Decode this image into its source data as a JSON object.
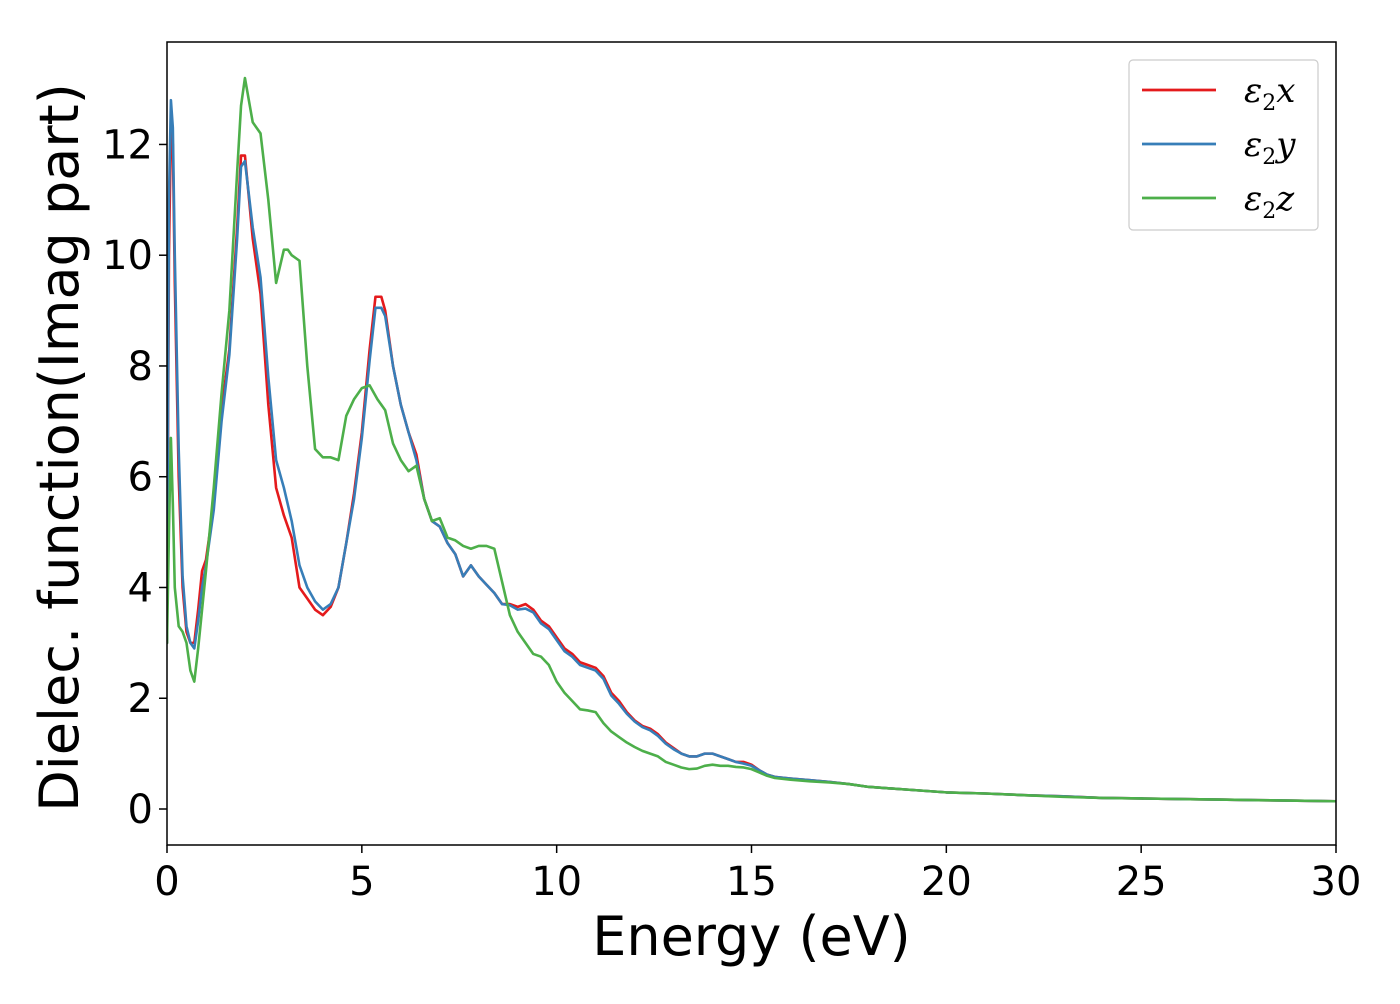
{
  "chart_data": {
    "type": "line",
    "title": "",
    "xlabel": "Energy (eV)",
    "ylabel": "Dielec. function(Imag part)",
    "xlim": [
      0,
      30
    ],
    "ylim": [
      -0.65,
      13.85
    ],
    "xticks": [
      0,
      5,
      10,
      15,
      20,
      25,
      30
    ],
    "yticks": [
      0,
      2,
      4,
      6,
      8,
      10,
      12
    ],
    "grid": false,
    "legend_position": "top-right",
    "series": [
      {
        "name": "ε₂x",
        "legend_main": "ε",
        "legend_sub": "2",
        "legend_suffix": "x",
        "color": "#e41a1c",
        "x": [
          0.0,
          0.05,
          0.1,
          0.15,
          0.2,
          0.3,
          0.4,
          0.5,
          0.6,
          0.7,
          0.8,
          0.9,
          1.0,
          1.2,
          1.4,
          1.6,
          1.8,
          1.9,
          2.0,
          2.2,
          2.4,
          2.6,
          2.8,
          3.0,
          3.2,
          3.4,
          3.6,
          3.8,
          4.0,
          4.2,
          4.4,
          4.6,
          4.8,
          5.0,
          5.2,
          5.35,
          5.5,
          5.6,
          5.8,
          6.0,
          6.2,
          6.4,
          6.6,
          6.8,
          7.0,
          7.2,
          7.4,
          7.6,
          7.8,
          8.0,
          8.2,
          8.4,
          8.6,
          8.8,
          9.0,
          9.2,
          9.4,
          9.6,
          9.8,
          10.0,
          10.2,
          10.4,
          10.6,
          10.8,
          11.0,
          11.2,
          11.4,
          11.6,
          11.8,
          12.0,
          12.2,
          12.4,
          12.6,
          12.8,
          13.0,
          13.2,
          13.4,
          13.6,
          13.8,
          14.0,
          14.2,
          14.4,
          14.6,
          14.8,
          15.0,
          15.2,
          15.4,
          15.6,
          16.0,
          16.5,
          17.0,
          17.5,
          18.0,
          19.0,
          20.0,
          21.0,
          22.0,
          23.0,
          24.0,
          25.0,
          26.0,
          27.0,
          28.0,
          29.0,
          30.0
        ],
        "y": [
          3.0,
          10.0,
          12.3,
          12.0,
          9.5,
          6.0,
          4.0,
          3.2,
          3.0,
          3.0,
          3.6,
          4.3,
          4.5,
          5.5,
          7.2,
          8.3,
          10.5,
          11.8,
          11.8,
          10.3,
          9.3,
          7.3,
          5.8,
          5.3,
          4.9,
          4.0,
          3.8,
          3.6,
          3.5,
          3.65,
          4.0,
          4.8,
          5.7,
          6.8,
          8.3,
          9.25,
          9.25,
          9.0,
          8.0,
          7.3,
          6.8,
          6.4,
          5.6,
          5.2,
          5.1,
          4.8,
          4.6,
          4.2,
          4.4,
          4.2,
          4.05,
          3.9,
          3.7,
          3.7,
          3.65,
          3.7,
          3.6,
          3.4,
          3.3,
          3.1,
          2.9,
          2.8,
          2.65,
          2.6,
          2.55,
          2.4,
          2.1,
          1.95,
          1.75,
          1.6,
          1.5,
          1.45,
          1.35,
          1.2,
          1.1,
          1.0,
          0.95,
          0.95,
          1.0,
          1.0,
          0.95,
          0.9,
          0.85,
          0.85,
          0.8,
          0.7,
          0.62,
          0.58,
          0.55,
          0.52,
          0.49,
          0.45,
          0.4,
          0.35,
          0.3,
          0.28,
          0.25,
          0.23,
          0.2,
          0.19,
          0.18,
          0.17,
          0.16,
          0.15,
          0.14
        ]
      },
      {
        "name": "ε₂y",
        "legend_main": "ε",
        "legend_sub": "2",
        "legend_suffix": "y",
        "color": "#377eb8",
        "x": [
          0.0,
          0.05,
          0.1,
          0.15,
          0.2,
          0.3,
          0.4,
          0.5,
          0.6,
          0.7,
          0.8,
          0.9,
          1.0,
          1.2,
          1.4,
          1.6,
          1.8,
          1.9,
          2.0,
          2.2,
          2.4,
          2.6,
          2.8,
          3.0,
          3.2,
          3.4,
          3.6,
          3.8,
          4.0,
          4.2,
          4.4,
          4.6,
          4.8,
          5.0,
          5.2,
          5.35,
          5.5,
          5.6,
          5.8,
          6.0,
          6.2,
          6.4,
          6.6,
          6.8,
          7.0,
          7.2,
          7.4,
          7.6,
          7.8,
          8.0,
          8.2,
          8.4,
          8.6,
          8.8,
          9.0,
          9.2,
          9.4,
          9.6,
          9.8,
          10.0,
          10.2,
          10.4,
          10.6,
          10.8,
          11.0,
          11.2,
          11.4,
          11.6,
          11.8,
          12.0,
          12.2,
          12.4,
          12.6,
          12.8,
          13.0,
          13.2,
          13.4,
          13.6,
          13.8,
          14.0,
          14.2,
          14.4,
          14.6,
          14.8,
          15.0,
          15.2,
          15.4,
          15.6,
          16.0,
          16.5,
          17.0,
          17.5,
          18.0,
          19.0,
          20.0,
          21.0,
          22.0,
          23.0,
          24.0,
          25.0,
          26.0,
          27.0,
          28.0,
          29.0,
          30.0
        ],
        "y": [
          3.0,
          11.0,
          12.8,
          12.3,
          10.0,
          6.5,
          4.2,
          3.3,
          3.0,
          2.9,
          3.4,
          4.0,
          4.4,
          5.4,
          7.0,
          8.2,
          10.3,
          11.6,
          11.7,
          10.5,
          9.6,
          7.8,
          6.3,
          5.8,
          5.2,
          4.4,
          4.0,
          3.75,
          3.6,
          3.7,
          4.0,
          4.8,
          5.6,
          6.7,
          8.1,
          9.05,
          9.05,
          8.9,
          8.0,
          7.3,
          6.8,
          6.3,
          5.6,
          5.2,
          5.1,
          4.8,
          4.6,
          4.2,
          4.4,
          4.2,
          4.05,
          3.9,
          3.7,
          3.68,
          3.6,
          3.62,
          3.55,
          3.35,
          3.25,
          3.05,
          2.85,
          2.75,
          2.6,
          2.55,
          2.5,
          2.35,
          2.05,
          1.9,
          1.72,
          1.58,
          1.48,
          1.42,
          1.32,
          1.18,
          1.08,
          1.0,
          0.95,
          0.95,
          1.0,
          1.0,
          0.95,
          0.9,
          0.85,
          0.82,
          0.78,
          0.7,
          0.62,
          0.58,
          0.55,
          0.52,
          0.49,
          0.45,
          0.4,
          0.35,
          0.3,
          0.28,
          0.25,
          0.23,
          0.2,
          0.19,
          0.18,
          0.17,
          0.16,
          0.15,
          0.14
        ]
      },
      {
        "name": "ε₂z",
        "legend_main": "ε",
        "legend_sub": "2",
        "legend_suffix": "z",
        "color": "#4daf4a",
        "x": [
          0.0,
          0.05,
          0.1,
          0.15,
          0.2,
          0.3,
          0.4,
          0.5,
          0.6,
          0.7,
          0.8,
          0.9,
          1.0,
          1.2,
          1.4,
          1.6,
          1.8,
          1.9,
          2.0,
          2.2,
          2.4,
          2.6,
          2.8,
          3.0,
          3.1,
          3.2,
          3.4,
          3.6,
          3.8,
          4.0,
          4.2,
          4.4,
          4.6,
          4.8,
          5.0,
          5.2,
          5.4,
          5.6,
          5.8,
          6.0,
          6.2,
          6.4,
          6.6,
          6.8,
          7.0,
          7.2,
          7.4,
          7.6,
          7.8,
          8.0,
          8.2,
          8.4,
          8.6,
          8.8,
          9.0,
          9.2,
          9.4,
          9.6,
          9.8,
          10.0,
          10.2,
          10.4,
          10.6,
          10.8,
          11.0,
          11.2,
          11.4,
          11.6,
          11.8,
          12.0,
          12.2,
          12.4,
          12.6,
          12.8,
          13.0,
          13.2,
          13.4,
          13.6,
          13.8,
          14.0,
          14.2,
          14.4,
          14.6,
          14.8,
          15.0,
          15.2,
          15.4,
          15.6,
          16.0,
          16.5,
          17.0,
          17.5,
          18.0,
          19.0,
          20.0,
          21.0,
          22.0,
          23.0,
          24.0,
          25.0,
          26.0,
          27.0,
          28.0,
          29.0,
          30.0
        ],
        "y": [
          3.0,
          5.0,
          6.7,
          5.5,
          4.0,
          3.3,
          3.2,
          3.0,
          2.5,
          2.3,
          2.9,
          3.6,
          4.3,
          5.8,
          7.5,
          9.0,
          11.5,
          12.7,
          13.2,
          12.4,
          12.2,
          11.0,
          9.5,
          10.1,
          10.1,
          10.0,
          9.9,
          8.0,
          6.5,
          6.35,
          6.35,
          6.3,
          7.1,
          7.4,
          7.6,
          7.65,
          7.4,
          7.2,
          6.6,
          6.3,
          6.1,
          6.2,
          5.6,
          5.2,
          5.25,
          4.9,
          4.85,
          4.75,
          4.7,
          4.75,
          4.75,
          4.7,
          4.1,
          3.5,
          3.2,
          3.0,
          2.8,
          2.75,
          2.6,
          2.3,
          2.1,
          1.95,
          1.8,
          1.78,
          1.75,
          1.55,
          1.4,
          1.3,
          1.2,
          1.12,
          1.05,
          1.0,
          0.95,
          0.85,
          0.8,
          0.75,
          0.72,
          0.73,
          0.78,
          0.8,
          0.78,
          0.78,
          0.76,
          0.75,
          0.72,
          0.66,
          0.6,
          0.56,
          0.53,
          0.5,
          0.48,
          0.45,
          0.4,
          0.35,
          0.3,
          0.28,
          0.25,
          0.22,
          0.2,
          0.19,
          0.18,
          0.17,
          0.16,
          0.15,
          0.14
        ]
      }
    ]
  }
}
